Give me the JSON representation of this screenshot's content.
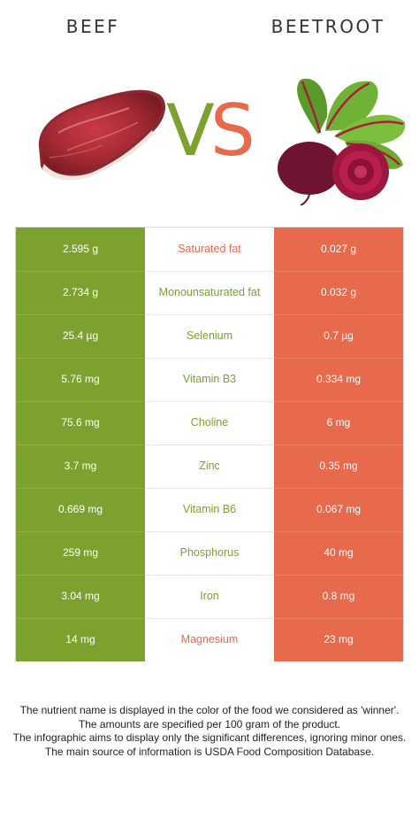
{
  "header": {
    "left_title": "BEEF",
    "right_title": "BEETROOT",
    "vs_v": "V",
    "vs_s": "S"
  },
  "colors": {
    "left_accent": "#7ca12e",
    "right_accent": "#e76a4d"
  },
  "images": {
    "left": "beef-steak-icon",
    "right": "beetroot-icon"
  },
  "rows": [
    {
      "left": "2.595 g",
      "nutrient": "Saturated fat",
      "right": "0.027 g",
      "winner": "right"
    },
    {
      "left": "2.734 g",
      "nutrient": "Monounsaturated fat",
      "right": "0.032 g",
      "winner": "left"
    },
    {
      "left": "25.4 µg",
      "nutrient": "Selenium",
      "right": "0.7 µg",
      "winner": "left"
    },
    {
      "left": "5.76 mg",
      "nutrient": "Vitamin B3",
      "right": "0.334 mg",
      "winner": "left"
    },
    {
      "left": "75.6 mg",
      "nutrient": "Choline",
      "right": "6 mg",
      "winner": "left"
    },
    {
      "left": "3.7 mg",
      "nutrient": "Zinc",
      "right": "0.35 mg",
      "winner": "left"
    },
    {
      "left": "0.669 mg",
      "nutrient": "Vitamin B6",
      "right": "0.067 mg",
      "winner": "left"
    },
    {
      "left": "259 mg",
      "nutrient": "Phosphorus",
      "right": "40 mg",
      "winner": "left"
    },
    {
      "left": "3.04 mg",
      "nutrient": "Iron",
      "right": "0.8 mg",
      "winner": "left"
    },
    {
      "left": "14 mg",
      "nutrient": "Magnesium",
      "right": "23 mg",
      "winner": "right"
    }
  ],
  "footer": {
    "line1": "The nutrient name is displayed in the color of the food we considered as 'winner'.",
    "line2": "The amounts are specified per 100 gram of the product.",
    "line3": "The infographic aims to display only the significant differences, ignoring minor ones.",
    "line4": "The main source of information is USDA Food Composition Database."
  }
}
